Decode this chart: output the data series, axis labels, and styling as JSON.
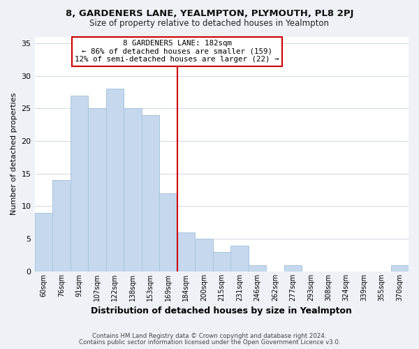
{
  "title1": "8, GARDENERS LANE, YEALMPTON, PLYMOUTH, PL8 2PJ",
  "title2": "Size of property relative to detached houses in Yealmpton",
  "xlabel": "Distribution of detached houses by size in Yealmpton",
  "ylabel": "Number of detached properties",
  "bar_labels": [
    "60sqm",
    "76sqm",
    "91sqm",
    "107sqm",
    "122sqm",
    "138sqm",
    "153sqm",
    "169sqm",
    "184sqm",
    "200sqm",
    "215sqm",
    "231sqm",
    "246sqm",
    "262sqm",
    "277sqm",
    "293sqm",
    "308sqm",
    "324sqm",
    "339sqm",
    "355sqm",
    "370sqm"
  ],
  "bar_heights": [
    9,
    14,
    27,
    25,
    28,
    25,
    24,
    12,
    6,
    5,
    3,
    4,
    1,
    0,
    1,
    0,
    0,
    0,
    0,
    0,
    1
  ],
  "bar_color": "#c5d8ed",
  "bar_edge_color": "#a8c4dc",
  "vline_x_index": 8,
  "vline_color": "#cc0000",
  "annotation_box_title": "8 GARDENERS LANE: 182sqm",
  "annotation_line1": "← 86% of detached houses are smaller (159)",
  "annotation_line2": "12% of semi-detached houses are larger (22) →",
  "annotation_box_edge_color": "#cc0000",
  "annotation_box_face_color": "#ffffff",
  "ylim": [
    0,
    36
  ],
  "yticks": [
    0,
    5,
    10,
    15,
    20,
    25,
    30,
    35
  ],
  "footer1": "Contains HM Land Registry data © Crown copyright and database right 2024.",
  "footer2": "Contains public sector information licensed under the Open Government Licence v3.0.",
  "bg_color": "#eef2f7",
  "plot_bg_color": "#ffffff",
  "grid_color": "#d0d8e4"
}
